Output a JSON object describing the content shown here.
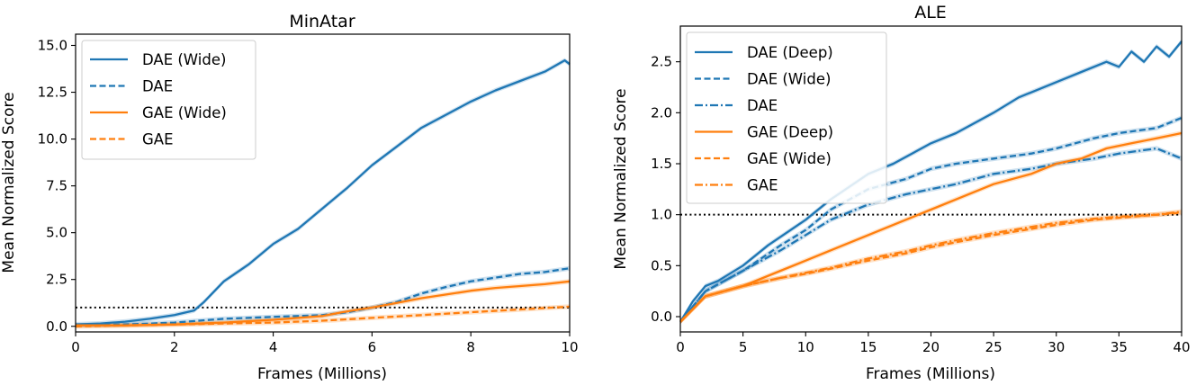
{
  "chart_data": [
    {
      "type": "line",
      "title": "MinAtar",
      "xlabel": "Frames (Millions)",
      "ylabel": "Mean Normalized Score",
      "xlim": [
        0,
        10
      ],
      "ylim": [
        -0.3,
        15.6
      ],
      "xticks": [
        0,
        2,
        4,
        6,
        8,
        10
      ],
      "xtick_labels": [
        "0",
        "2",
        "4",
        "6",
        "8",
        "10"
      ],
      "yticks": [
        0,
        2.5,
        5,
        7.5,
        10,
        12.5,
        15
      ],
      "ytick_labels": [
        "0.0",
        "2.5",
        "5.0",
        "7.5",
        "10.0",
        "12.5",
        "15.0"
      ],
      "reference_line": 1.0,
      "legend_location": "upper-left",
      "series": [
        {
          "name": "DAE (Wide)",
          "color": "#1f77b4",
          "style": "solid",
          "x": [
            0,
            0.5,
            1,
            1.5,
            2,
            2.4,
            2.6,
            3,
            3.5,
            4,
            4.5,
            5,
            5.5,
            6,
            6.5,
            7,
            7.5,
            8,
            8.5,
            9,
            9.5,
            9.9,
            10
          ],
          "y": [
            0.1,
            0.15,
            0.25,
            0.4,
            0.6,
            0.85,
            1.3,
            2.4,
            3.3,
            4.4,
            5.2,
            6.3,
            7.4,
            8.6,
            9.6,
            10.6,
            11.3,
            12.0,
            12.6,
            13.1,
            13.6,
            14.2,
            14.0
          ]
        },
        {
          "name": "DAE",
          "color": "#1f77b4",
          "style": "dashed",
          "x": [
            0,
            1,
            2,
            2.5,
            3,
            4,
            5,
            5.5,
            6,
            6.5,
            7,
            7.5,
            8,
            8.5,
            9,
            9.5,
            10
          ],
          "y": [
            0.05,
            0.1,
            0.2,
            0.3,
            0.4,
            0.5,
            0.6,
            0.75,
            1.0,
            1.3,
            1.75,
            2.1,
            2.4,
            2.6,
            2.8,
            2.9,
            3.1
          ]
        },
        {
          "name": "GAE (Wide)",
          "color": "#ff7f0e",
          "style": "solid",
          "x": [
            0,
            1,
            2,
            3,
            4,
            5,
            5.5,
            6,
            6.5,
            7,
            7.5,
            8,
            8.5,
            9,
            9.5,
            10
          ],
          "y": [
            0.05,
            0.05,
            0.1,
            0.2,
            0.35,
            0.55,
            0.8,
            1.0,
            1.25,
            1.5,
            1.7,
            1.9,
            2.05,
            2.15,
            2.25,
            2.4
          ]
        },
        {
          "name": "GAE",
          "color": "#ff7f0e",
          "style": "dashed",
          "x": [
            0,
            1,
            2,
            3,
            4,
            5,
            6,
            7,
            8,
            9,
            10
          ],
          "y": [
            0.0,
            0.05,
            0.1,
            0.15,
            0.2,
            0.3,
            0.45,
            0.6,
            0.75,
            0.9,
            1.05
          ]
        }
      ]
    },
    {
      "type": "line",
      "title": "ALE",
      "xlabel": "Frames (Millions)",
      "ylabel": "Mean Normalized Score",
      "xlim": [
        0,
        40
      ],
      "ylim": [
        -0.15,
        2.85
      ],
      "xticks": [
        0,
        5,
        10,
        15,
        20,
        25,
        30,
        35,
        40
      ],
      "xtick_labels": [
        "0",
        "5",
        "10",
        "15",
        "20",
        "25",
        "30",
        "35",
        "40"
      ],
      "yticks": [
        0,
        0.5,
        1,
        1.5,
        2,
        2.5
      ],
      "ytick_labels": [
        "0.0",
        "0.5",
        "1.0",
        "1.5",
        "2.0",
        "2.5"
      ],
      "reference_line": 1.0,
      "legend_location": "upper-left",
      "series": [
        {
          "name": "DAE (Deep)",
          "color": "#1f77b4",
          "style": "solid",
          "x": [
            0,
            1,
            2,
            3,
            5,
            7,
            10,
            12,
            15,
            17,
            20,
            22,
            25,
            27,
            30,
            32,
            34,
            35,
            36,
            37,
            38,
            39,
            40
          ],
          "y": [
            -0.05,
            0.15,
            0.3,
            0.35,
            0.5,
            0.7,
            0.95,
            1.15,
            1.4,
            1.5,
            1.7,
            1.8,
            2.0,
            2.15,
            2.3,
            2.4,
            2.5,
            2.45,
            2.6,
            2.5,
            2.65,
            2.55,
            2.7
          ]
        },
        {
          "name": "DAE (Wide)",
          "color": "#1f77b4",
          "style": "dashed",
          "x": [
            0,
            2,
            5,
            8,
            10,
            12,
            15,
            18,
            20,
            22,
            25,
            28,
            30,
            33,
            35,
            38,
            40
          ],
          "y": [
            -0.05,
            0.25,
            0.45,
            0.7,
            0.85,
            1.05,
            1.25,
            1.35,
            1.45,
            1.5,
            1.55,
            1.6,
            1.65,
            1.75,
            1.8,
            1.85,
            1.95
          ]
        },
        {
          "name": "DAE",
          "color": "#1f77b4",
          "style": "dashdot",
          "x": [
            0,
            2,
            5,
            8,
            10,
            12,
            15,
            18,
            20,
            22,
            25,
            28,
            30,
            33,
            35,
            38,
            40
          ],
          "y": [
            -0.05,
            0.25,
            0.45,
            0.65,
            0.8,
            0.95,
            1.1,
            1.2,
            1.25,
            1.3,
            1.4,
            1.45,
            1.5,
            1.55,
            1.6,
            1.65,
            1.55
          ]
        },
        {
          "name": "GAE (Deep)",
          "color": "#ff7f0e",
          "style": "solid",
          "x": [
            0,
            2,
            5,
            8,
            10,
            12,
            15,
            18,
            20,
            22,
            25,
            28,
            30,
            32,
            34,
            36,
            38,
            40
          ],
          "y": [
            -0.05,
            0.2,
            0.3,
            0.45,
            0.55,
            0.65,
            0.8,
            0.95,
            1.05,
            1.15,
            1.3,
            1.4,
            1.5,
            1.55,
            1.65,
            1.7,
            1.75,
            1.8
          ]
        },
        {
          "name": "GAE (Wide)",
          "color": "#ff7f0e",
          "style": "dashed",
          "x": [
            0,
            2,
            5,
            8,
            10,
            12,
            15,
            18,
            20,
            22,
            25,
            28,
            30,
            33,
            35,
            38,
            40
          ],
          "y": [
            -0.05,
            0.2,
            0.3,
            0.38,
            0.42,
            0.47,
            0.55,
            0.62,
            0.68,
            0.73,
            0.8,
            0.86,
            0.9,
            0.95,
            0.97,
            1.0,
            1.02
          ]
        },
        {
          "name": "GAE",
          "color": "#ff7f0e",
          "style": "dashdot",
          "x": [
            0,
            2,
            5,
            8,
            10,
            12,
            15,
            18,
            20,
            22,
            25,
            28,
            30,
            33,
            35,
            38,
            40
          ],
          "y": [
            -0.05,
            0.2,
            0.3,
            0.38,
            0.43,
            0.48,
            0.57,
            0.64,
            0.7,
            0.75,
            0.82,
            0.88,
            0.92,
            0.96,
            0.98,
            1.0,
            1.03
          ]
        }
      ]
    }
  ]
}
